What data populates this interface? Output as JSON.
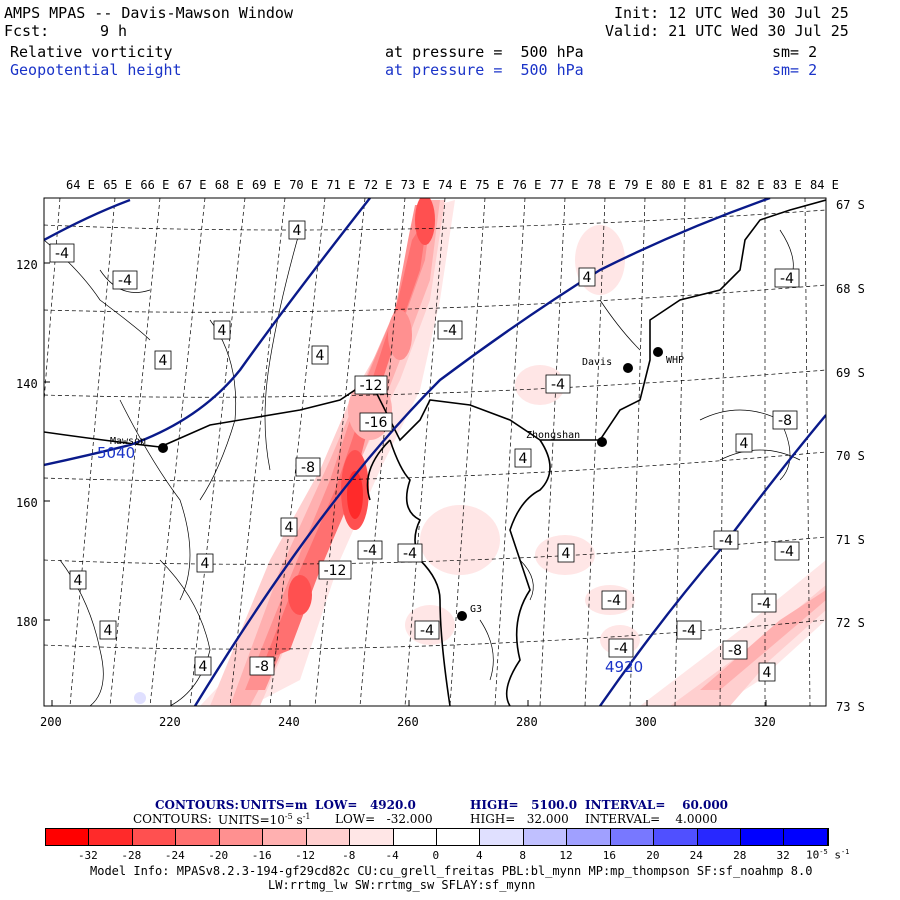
{
  "header": {
    "title": "AMPS MPAS -- Davis-Mawson Window",
    "init": "Init: 12 UTC Wed 30 Jul 25",
    "fcst_label": "Fcst:",
    "fcst_value": "9 h",
    "valid": "Valid: 21 UTC Wed 30 Jul 25",
    "field1_name": "Relative vorticity",
    "field1_level": "at pressure =  500 hPa",
    "field1_sm": "sm= 2",
    "field2_name": "Geopotential height",
    "field2_level": "at pressure =  500 hPa",
    "field2_sm": "sm= 2"
  },
  "top_axis_labels": [
    "64 E",
    "65 E",
    "66 E",
    "67 E",
    "68 E",
    "69 E",
    "70 E",
    "71 E",
    "72 E",
    "73 E",
    "74 E",
    "75 E",
    "76 E",
    "77 E",
    "78 E",
    "79 E",
    "80 E",
    "81 E",
    "82 E",
    "83 E",
    "84 E"
  ],
  "left_axis_labels": [
    "120",
    "140",
    "160",
    "180"
  ],
  "bottom_axis_labels": [
    "200",
    "220",
    "240",
    "260",
    "280",
    "300",
    "320"
  ],
  "right_axis_labels": [
    "67 S",
    "68 S",
    "69 S",
    "70 S",
    "71 S",
    "72 S",
    "73 S"
  ],
  "stations": [
    {
      "name": "Mawson"
    },
    {
      "name": "Davis"
    },
    {
      "name": "WHP"
    },
    {
      "name": "Zhongshan"
    },
    {
      "name": "G3"
    }
  ],
  "height_contour_labels": [
    "5040",
    "4920"
  ],
  "vorticity_labels": [
    "-4",
    "-4",
    "4",
    "4",
    "4",
    "4",
    "4",
    "-12",
    "-16",
    "-4",
    "-8",
    "-4",
    "-4",
    "-8",
    "4",
    "4",
    "4",
    "-12",
    "-4",
    "-4",
    "4",
    "-4",
    "-4",
    "-4",
    "4",
    "4",
    "4",
    "-4",
    "-4",
    "-8",
    "-4",
    "-8",
    "4",
    "4",
    "-4"
  ],
  "contours_line1": {
    "prefix": "CONTOURS:",
    "units": "UNITS=m",
    "low": "LOW=   4920.0",
    "high": "HIGH=   5100.0",
    "interval": "INTERVAL=    60.000"
  },
  "contours_line2": {
    "prefix": "CONTOURS:",
    "units": "UNITS=10",
    "units_exp": "-5",
    "units_s": "s",
    "units_s_exp": "-1",
    "low": "LOW=   -32.000",
    "high": "HIGH=   32.000",
    "interval": "INTERVAL=    4.0000"
  },
  "colorbar": {
    "tick_labels": [
      "-32",
      "-28",
      "-24",
      "-20",
      "-16",
      "-12",
      "-8",
      "-4",
      "0",
      "4",
      "8",
      "12",
      "16",
      "20",
      "24",
      "28",
      "32"
    ],
    "unit": "10",
    "unit_exp": "-5",
    "unit_s": "s",
    "unit_s_exp": "-1",
    "colors": [
      "#ff0000",
      "#ff2a2a",
      "#ff5050",
      "#ff7070",
      "#ff9090",
      "#ffb0b0",
      "#ffcfcf",
      "#ffe6e6",
      "#ffffff",
      "#ffffff",
      "#e0e0ff",
      "#c0c0ff",
      "#a0a0ff",
      "#7878ff",
      "#5050ff",
      "#2828ff",
      "#0000ff",
      "#0000ff"
    ]
  },
  "model_info_line1": "Model Info: MPASv8.2.3-194-gf29cd82c CU:cu_grell_freitas PBL:bl_mynn MP:mp_thompson SF:sf_noahmp 8.0",
  "model_info_line2": "LW:rrtmg_lw SW:rrtmg_sw SFLAY:sf_mynn"
}
